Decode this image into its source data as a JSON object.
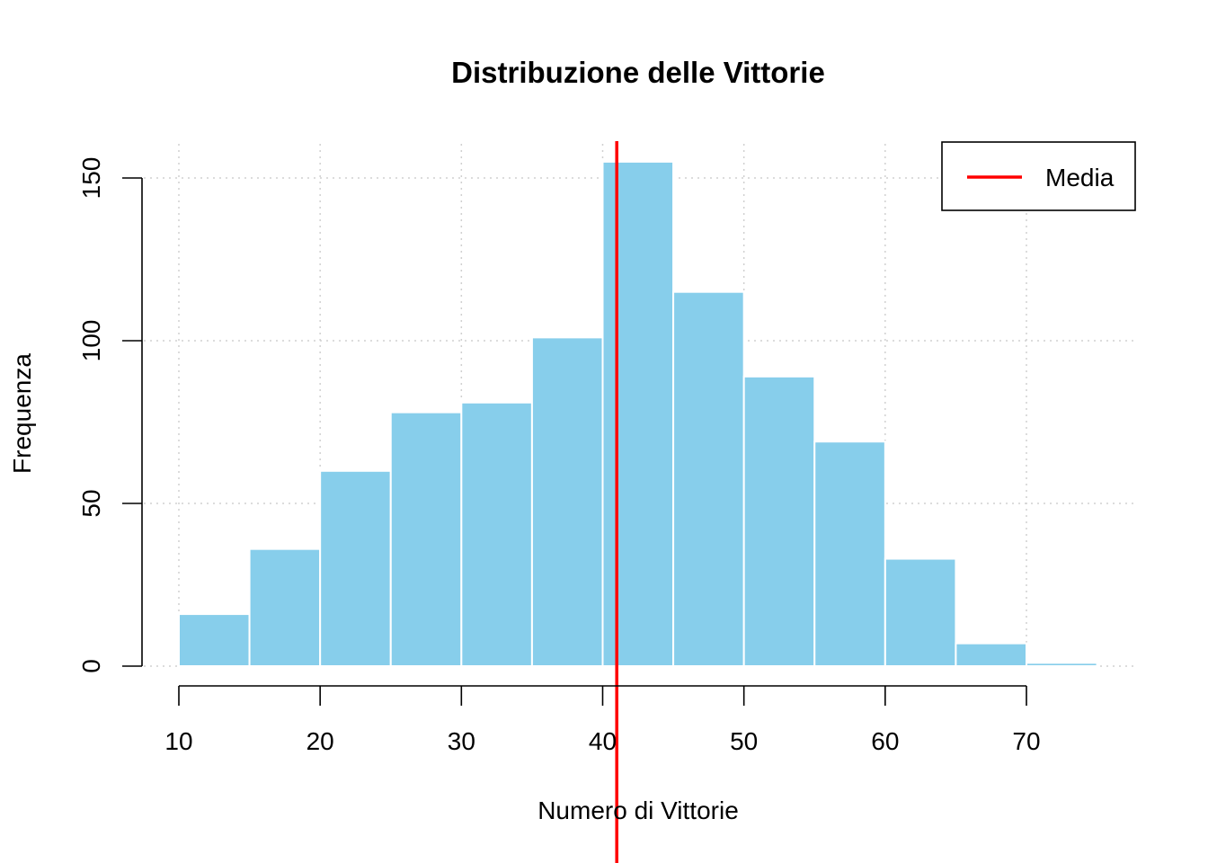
{
  "chart_data": {
    "type": "bar",
    "title": "Distribuzione delle Vittorie",
    "xlabel": "Numero di Vittorie",
    "ylabel": "Frequenza",
    "bin_edges": [
      10,
      15,
      20,
      25,
      30,
      35,
      40,
      45,
      50,
      55,
      60,
      65,
      70,
      75
    ],
    "values": [
      16,
      36,
      60,
      78,
      81,
      101,
      155,
      115,
      89,
      69,
      33,
      7,
      1
    ],
    "xlim": [
      9,
      77
    ],
    "ylim": [
      0,
      160
    ],
    "x_ticks": [
      10,
      20,
      30,
      40,
      50,
      60,
      70
    ],
    "y_ticks": [
      0,
      50,
      100,
      150
    ],
    "x_grid": [
      10,
      20,
      30,
      40,
      50,
      60,
      70
    ],
    "y_grid": [
      0,
      50,
      100,
      150
    ],
    "grid": true,
    "bar_color": "#87CEEB",
    "mean": 41,
    "mean_color": "#FF0000",
    "legend": {
      "position": "top-right",
      "entries": [
        {
          "label": "Media",
          "color": "#FF0000"
        }
      ]
    }
  }
}
